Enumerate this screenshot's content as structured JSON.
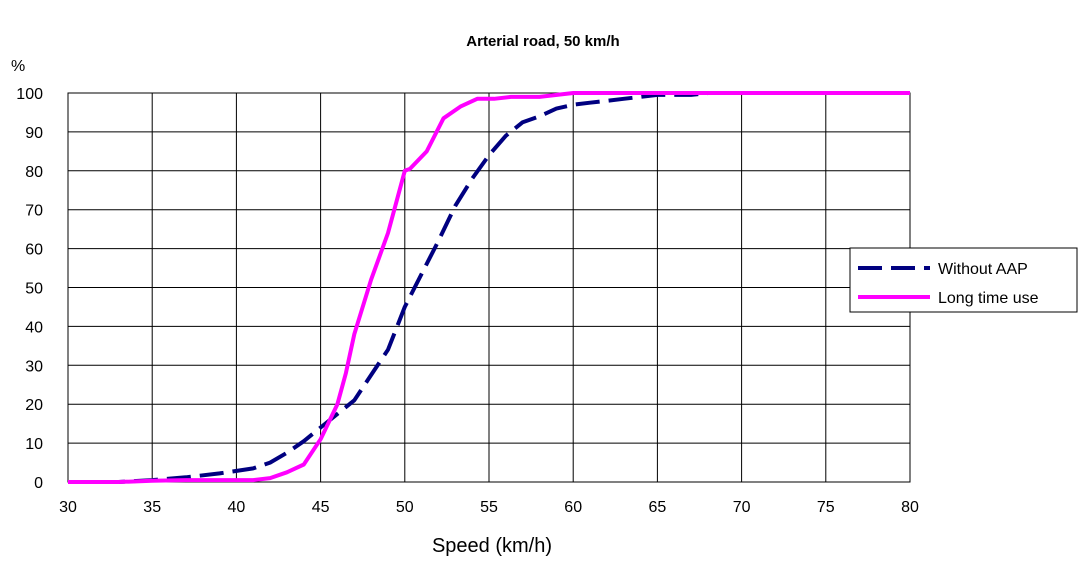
{
  "chart_data": {
    "type": "line",
    "title": "Arterial road, 50 km/h",
    "xlabel": "Speed (km/h)",
    "ylabel": "%",
    "xlim": [
      30,
      80
    ],
    "ylim": [
      0,
      100
    ],
    "xticks": [
      30,
      35,
      40,
      45,
      50,
      55,
      60,
      65,
      70,
      75,
      80
    ],
    "yticks": [
      0,
      10,
      20,
      30,
      40,
      50,
      60,
      70,
      80,
      90,
      100
    ],
    "grid": true,
    "legend_position": "right",
    "series": [
      {
        "name": "Without AAP",
        "color": "#000080",
        "style": "dashed",
        "x": [
          30,
          33,
          35,
          37,
          39,
          41,
          42,
          43,
          44,
          45,
          46,
          47,
          48,
          49,
          50,
          51,
          52,
          53,
          54,
          55,
          56,
          57,
          58,
          59,
          60,
          61,
          62,
          63,
          64,
          65,
          66,
          67,
          68,
          70,
          75,
          80
        ],
        "y": [
          0,
          0,
          0.5,
          1.2,
          2.2,
          3.5,
          5,
          7.5,
          10.5,
          14,
          17.5,
          21,
          27.5,
          34,
          45,
          53.5,
          62,
          71,
          78,
          84,
          89,
          92.5,
          94,
          96,
          97,
          97.5,
          98,
          98.5,
          99,
          99.5,
          99.5,
          99.5,
          100,
          100,
          100,
          100
        ]
      },
      {
        "name": "Long time use",
        "color": "#ff00ff",
        "style": "solid",
        "x": [
          30,
          33,
          35,
          37,
          39,
          41,
          42,
          43,
          44,
          45,
          46,
          46.5,
          47,
          48,
          49,
          50,
          50.3,
          51.3,
          52.3,
          53.3,
          54.3,
          55.3,
          56.3,
          58,
          60,
          65,
          70,
          75,
          80
        ],
        "y": [
          0,
          0,
          0.3,
          0.5,
          0.5,
          0.5,
          1,
          2.5,
          4.5,
          11,
          20,
          28,
          38,
          52,
          64,
          80,
          80.5,
          85,
          93.5,
          96.5,
          98.5,
          98.5,
          99,
          99,
          100,
          100,
          100,
          100,
          100
        ]
      }
    ]
  }
}
